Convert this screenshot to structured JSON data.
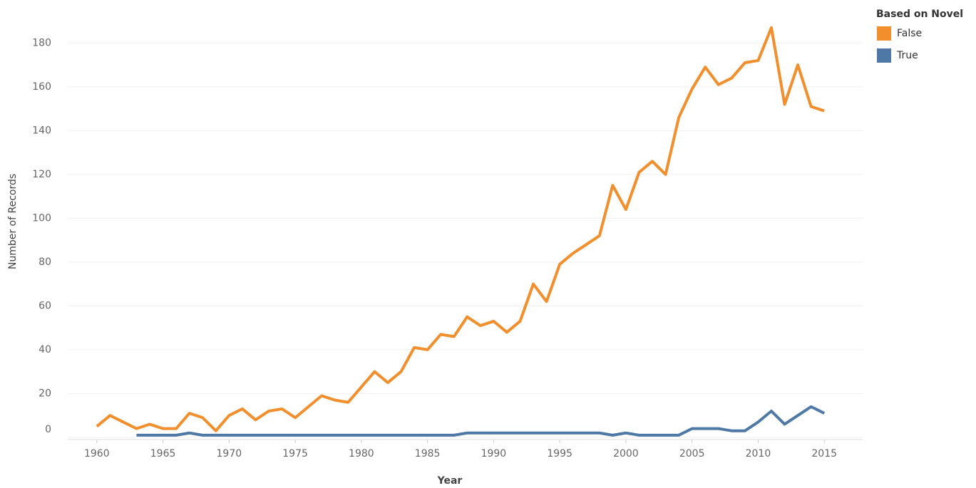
{
  "chart_data": {
    "type": "line",
    "x_label": "Year",
    "y_label": "Number of Records",
    "legend_title": "Based on Novel",
    "legend": "right",
    "grid": true,
    "x": [
      1960,
      1961,
      1962,
      1963,
      1964,
      1965,
      1966,
      1967,
      1968,
      1969,
      1970,
      1971,
      1972,
      1973,
      1974,
      1975,
      1976,
      1977,
      1978,
      1979,
      1980,
      1981,
      1982,
      1983,
      1984,
      1985,
      1986,
      1987,
      1988,
      1989,
      1990,
      1991,
      1992,
      1993,
      1994,
      1995,
      1996,
      1997,
      1998,
      1999,
      2000,
      2001,
      2002,
      2003,
      2004,
      2005,
      2006,
      2007,
      2008,
      2009,
      2010,
      2011,
      2012,
      2013,
      2014,
      2015
    ],
    "series": [
      {
        "name": "False",
        "color": "#f28e2b",
        "values": [
          5,
          10,
          7,
          4,
          6,
          4,
          4,
          11,
          9,
          3,
          10,
          13,
          8,
          12,
          13,
          9,
          14,
          19,
          17,
          16,
          23,
          30,
          25,
          30,
          41,
          40,
          47,
          46,
          55,
          51,
          53,
          48,
          53,
          70,
          62,
          79,
          84,
          88,
          92,
          115,
          104,
          121,
          126,
          120,
          146,
          159,
          169,
          161,
          164,
          171,
          172,
          187,
          152,
          170,
          151,
          149
        ]
      },
      {
        "name": "True",
        "color": "#4e79a7",
        "values": [
          null,
          null,
          null,
          1,
          1,
          1,
          1,
          2,
          1,
          1,
          1,
          1,
          1,
          1,
          1,
          1,
          1,
          1,
          1,
          1,
          1,
          1,
          1,
          1,
          1,
          1,
          1,
          1,
          2,
          2,
          2,
          2,
          2,
          2,
          2,
          2,
          2,
          2,
          2,
          1,
          2,
          1,
          1,
          1,
          1,
          4,
          4,
          4,
          3,
          3,
          7,
          12,
          6,
          10,
          14,
          11
        ]
      }
    ],
    "xlim": [
      1957.8,
      2017.9
    ],
    "xticks": [
      1960,
      1965,
      1970,
      1975,
      1980,
      1985,
      1990,
      1995,
      2000,
      2005,
      2010,
      2015
    ],
    "ylim": [
      -1,
      198
    ],
    "yticks": [
      0,
      20,
      40,
      60,
      80,
      100,
      120,
      140,
      160,
      180
    ]
  }
}
